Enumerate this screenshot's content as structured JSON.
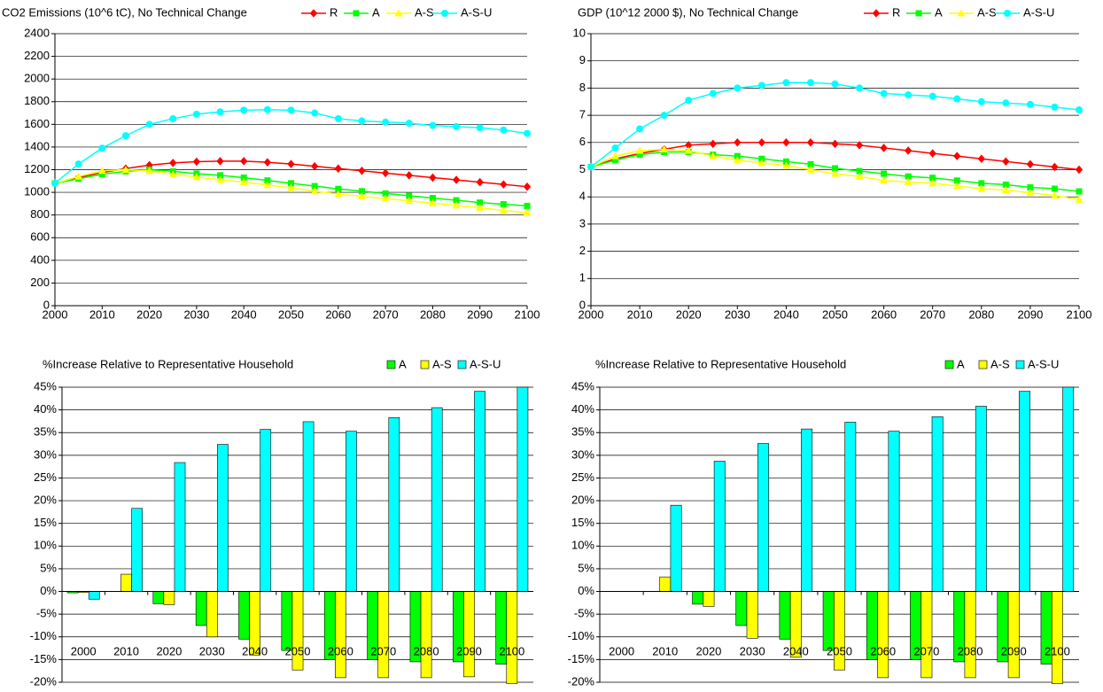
{
  "chart_data": [
    {
      "type": "line",
      "title": "CO2 Emissions (10^6 tC), No Technical Change",
      "x": [
        2000,
        2005,
        2010,
        2015,
        2020,
        2025,
        2030,
        2035,
        2040,
        2045,
        2050,
        2055,
        2060,
        2065,
        2070,
        2075,
        2080,
        2085,
        2090,
        2095,
        2100
      ],
      "xlim": [
        2000,
        2100
      ],
      "xticks": [
        2000,
        2010,
        2020,
        2030,
        2040,
        2050,
        2060,
        2070,
        2080,
        2090,
        2100
      ],
      "ylim": [
        0,
        2400
      ],
      "yticks": [
        0,
        200,
        400,
        600,
        800,
        1000,
        1200,
        1400,
        1600,
        1800,
        2000,
        2200,
        2400
      ],
      "grid": true,
      "series": [
        {
          "name": "R",
          "color": "#ff0000",
          "marker": "diamond",
          "values": [
            1080,
            1130,
            1175,
            1210,
            1240,
            1260,
            1270,
            1275,
            1275,
            1265,
            1250,
            1230,
            1210,
            1190,
            1170,
            1150,
            1130,
            1110,
            1090,
            1070,
            1050
          ]
        },
        {
          "name": "A",
          "color": "#00ff00",
          "marker": "square",
          "values": [
            1080,
            1120,
            1160,
            1185,
            1200,
            1185,
            1165,
            1150,
            1130,
            1105,
            1080,
            1055,
            1030,
            1010,
            990,
            970,
            950,
            930,
            910,
            895,
            880
          ]
        },
        {
          "name": "A-S",
          "color": "#ffff00",
          "marker": "triangle",
          "values": [
            1080,
            1140,
            1190,
            1200,
            1190,
            1160,
            1135,
            1110,
            1090,
            1065,
            1040,
            1010,
            985,
            965,
            945,
            925,
            905,
            885,
            865,
            840,
            820
          ]
        },
        {
          "name": "A-S-U",
          "color": "#00ffff",
          "marker": "circle",
          "values": [
            1080,
            1250,
            1390,
            1500,
            1600,
            1650,
            1690,
            1710,
            1725,
            1730,
            1725,
            1700,
            1650,
            1630,
            1620,
            1610,
            1590,
            1580,
            1570,
            1550,
            1520
          ]
        }
      ]
    },
    {
      "type": "line",
      "title": "GDP (10^12 2000 $), No Technical Change",
      "x": [
        2000,
        2005,
        2010,
        2015,
        2020,
        2025,
        2030,
        2035,
        2040,
        2045,
        2050,
        2055,
        2060,
        2065,
        2070,
        2075,
        2080,
        2085,
        2090,
        2095,
        2100
      ],
      "xlim": [
        2000,
        2100
      ],
      "xticks": [
        2000,
        2010,
        2020,
        2030,
        2040,
        2050,
        2060,
        2070,
        2080,
        2090,
        2100
      ],
      "ylim": [
        0,
        10
      ],
      "yticks": [
        0,
        1,
        2,
        3,
        4,
        5,
        6,
        7,
        8,
        9,
        10
      ],
      "grid": true,
      "series": [
        {
          "name": "R",
          "color": "#ff0000",
          "marker": "diamond",
          "values": [
            5.1,
            5.4,
            5.6,
            5.75,
            5.9,
            5.95,
            6.0,
            6.0,
            6.0,
            6.0,
            5.95,
            5.9,
            5.8,
            5.7,
            5.6,
            5.5,
            5.4,
            5.3,
            5.2,
            5.1,
            5.0
          ]
        },
        {
          "name": "A",
          "color": "#00ff00",
          "marker": "square",
          "values": [
            5.1,
            5.35,
            5.55,
            5.65,
            5.65,
            5.55,
            5.5,
            5.4,
            5.3,
            5.2,
            5.05,
            4.95,
            4.85,
            4.75,
            4.7,
            4.6,
            4.5,
            4.45,
            4.35,
            4.3,
            4.2
          ]
        },
        {
          "name": "A-S",
          "color": "#ffff00",
          "marker": "triangle",
          "values": [
            5.1,
            5.5,
            5.7,
            5.75,
            5.7,
            5.5,
            5.35,
            5.25,
            5.15,
            5.0,
            4.85,
            4.75,
            4.6,
            4.55,
            4.5,
            4.4,
            4.3,
            4.25,
            4.15,
            4.05,
            3.9
          ]
        },
        {
          "name": "A-S-U",
          "color": "#00ffff",
          "marker": "circle",
          "values": [
            5.1,
            5.8,
            6.5,
            7.0,
            7.55,
            7.8,
            8.0,
            8.1,
            8.2,
            8.2,
            8.15,
            8.0,
            7.8,
            7.75,
            7.7,
            7.6,
            7.5,
            7.45,
            7.4,
            7.3,
            7.2
          ]
        }
      ]
    },
    {
      "type": "bar",
      "title": "%Increase Relative to Representative Household",
      "categories": [
        "2000",
        "2010",
        "2020",
        "2030",
        "2040",
        "2050",
        "2060",
        "2070",
        "2080",
        "2090",
        "2100"
      ],
      "ylim": [
        -20,
        45
      ],
      "grid": true,
      "yticks": [
        {
          "value": -20,
          "label": "-20%"
        },
        {
          "value": -15,
          "label": "-15%"
        },
        {
          "value": -10,
          "label": "-10%"
        },
        {
          "value": -5,
          "label": "-5%"
        },
        {
          "value": 0,
          "label": "0%"
        },
        {
          "value": 5,
          "label": "5%"
        },
        {
          "value": 10,
          "label": "10%"
        },
        {
          "value": 15,
          "label": "15%"
        },
        {
          "value": 20,
          "label": "20%"
        },
        {
          "value": 25,
          "label": "25%"
        },
        {
          "value": 30,
          "label": "30%"
        },
        {
          "value": 35,
          "label": "35%"
        },
        {
          "value": 40,
          "label": "40%"
        },
        {
          "value": 45,
          "label": "45%"
        }
      ],
      "series": [
        {
          "name": "A",
          "color": "#00ff00",
          "values": [
            -0.3,
            0,
            -2.7,
            -7.5,
            -10.5,
            -13,
            -15,
            -15,
            -15.5,
            -15.5,
            -16
          ]
        },
        {
          "name": "A-S",
          "color": "#ffff00",
          "values": [
            -0.2,
            3.8,
            -2.9,
            -10,
            -14,
            -17.3,
            -19,
            -19,
            -19,
            -18.8,
            -20.3
          ]
        },
        {
          "name": "A-S-U",
          "color": "#00ffff",
          "values": [
            -1.7,
            18.3,
            28.4,
            32.4,
            35.7,
            37.4,
            35.3,
            38.3,
            40.5,
            44.1,
            45
          ]
        }
      ]
    },
    {
      "type": "bar",
      "title": "%Increase Relative to Representative Household",
      "categories": [
        "2000",
        "2010",
        "2020",
        "2030",
        "2040",
        "2050",
        "2060",
        "2070",
        "2080",
        "2090",
        "2100"
      ],
      "ylim": [
        -20,
        45
      ],
      "grid": true,
      "yticks": [
        {
          "value": -20,
          "label": "-20%"
        },
        {
          "value": -15,
          "label": "-15%"
        },
        {
          "value": -10,
          "label": "-10%"
        },
        {
          "value": -5,
          "label": "-5%"
        },
        {
          "value": 0,
          "label": "0%"
        },
        {
          "value": 5,
          "label": "5%"
        },
        {
          "value": 10,
          "label": "10%"
        },
        {
          "value": 15,
          "label": "15%"
        },
        {
          "value": 20,
          "label": "20%"
        },
        {
          "value": 25,
          "label": "25%"
        },
        {
          "value": 30,
          "label": "30%"
        },
        {
          "value": 35,
          "label": "35%"
        },
        {
          "value": 40,
          "label": "40%"
        },
        {
          "value": 45,
          "label": "45%"
        }
      ],
      "series": [
        {
          "name": "A",
          "color": "#00ff00",
          "values": [
            0,
            0,
            -2.8,
            -7.5,
            -10.5,
            -13,
            -15,
            -15,
            -15.5,
            -15.5,
            -16
          ]
        },
        {
          "name": "A-S",
          "color": "#ffff00",
          "values": [
            0,
            3.2,
            -3.3,
            -10.3,
            -14.5,
            -17.3,
            -19,
            -19,
            -19,
            -19,
            -20.3
          ]
        },
        {
          "name": "A-S-U",
          "color": "#00ffff",
          "values": [
            0,
            19,
            28.7,
            32.6,
            35.8,
            37.3,
            35.3,
            38.5,
            40.8,
            44.1,
            45
          ]
        }
      ]
    }
  ]
}
